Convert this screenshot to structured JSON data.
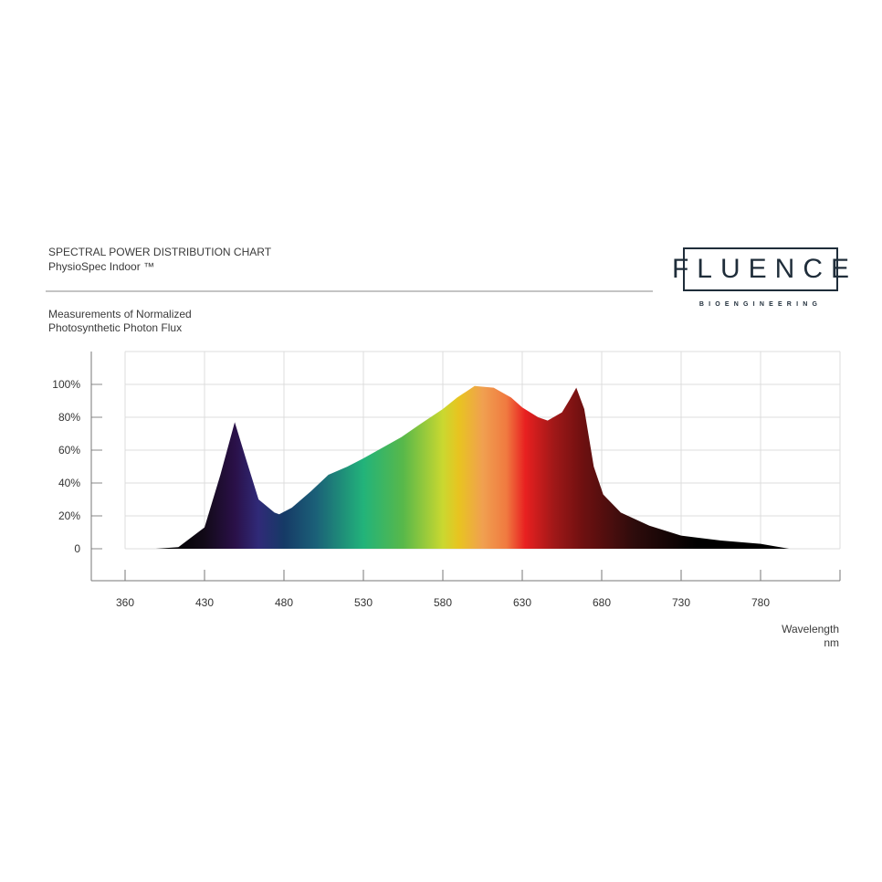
{
  "header": {
    "title": "SPECTRAL POWER DISTRIBUTION CHART",
    "subtitle": "PhysioSpec Indoor ™",
    "description_line1": "Measurements of Normalized",
    "description_line2": "Photosynthetic Photon Flux"
  },
  "logo": {
    "name": "FLUENCE",
    "tagline": "BIOENGINEERING",
    "color": "#1f2d3a"
  },
  "chart_data": {
    "type": "area",
    "title": "SPECTRAL POWER DISTRIBUTION CHART",
    "ylabel": "Measurements of Normalized Photosynthetic Photon Flux",
    "xlabel": "Wavelength",
    "xunit": "nm",
    "x_ticks": [
      360,
      430,
      480,
      530,
      580,
      630,
      680,
      730,
      780
    ],
    "y_ticks": [
      "0",
      "20%",
      "40%",
      "60%",
      "80%",
      "100%"
    ],
    "ylim": [
      0,
      100
    ],
    "grid": true,
    "fill": "visible spectrum gradient",
    "x": [
      387,
      407,
      430,
      440,
      449,
      456,
      464,
      474,
      477,
      485,
      497,
      508,
      520,
      530,
      543,
      554,
      566,
      580,
      589,
      600,
      612,
      623,
      630,
      640,
      646,
      655,
      660,
      664,
      669,
      675,
      681,
      692,
      710,
      730,
      755,
      780,
      798
    ],
    "y": [
      0,
      1,
      13,
      45,
      77,
      55,
      30,
      22,
      21,
      25,
      35,
      45,
      50,
      55,
      62,
      68,
      76,
      85,
      92,
      99,
      98,
      92,
      86,
      80,
      78,
      83,
      91,
      98,
      85,
      50,
      33,
      22,
      14,
      8,
      5,
      3,
      0
    ]
  }
}
